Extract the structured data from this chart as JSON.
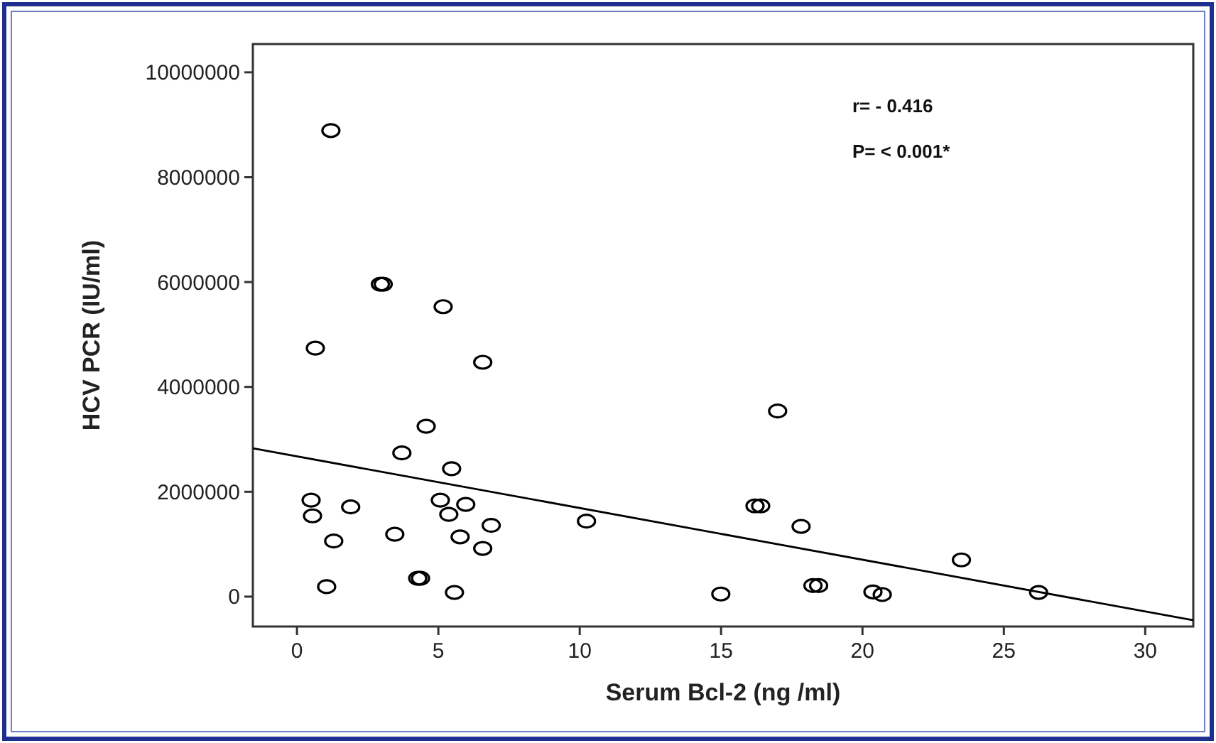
{
  "chart_data": {
    "type": "scatter",
    "xlabel": "Serum Bcl-2 (ng /ml)",
    "ylabel": "HCV PCR (IU/ml)",
    "xlim": [
      -1.56,
      31.7
    ],
    "ylim": [
      -570000,
      10540000
    ],
    "xticks": [
      0,
      5,
      10,
      15,
      20,
      25,
      30
    ],
    "yticks": [
      0,
      2000000,
      4000000,
      6000000,
      8000000,
      10000000
    ],
    "grid": false,
    "annotations": [
      "r= - 0.416",
      "P= < 0.001*"
    ],
    "series": [
      {
        "marker": "circle",
        "color": "#000000",
        "x": [
          1.2,
          2.95,
          3.05,
          5.17,
          0.65,
          6.57,
          4.57,
          3.71,
          5.47,
          0.5,
          0.55,
          1.9,
          5.07,
          5.37,
          5.97,
          6.87,
          1.3,
          3.46,
          5.77,
          6.57,
          1.05,
          4.27,
          4.37,
          5.57,
          10.24,
          17.0,
          16.2,
          16.4,
          17.83,
          14.99,
          18.25,
          18.45,
          20.37,
          20.7,
          23.5,
          26.23
        ],
        "values": [
          8890000,
          5960000,
          5960000,
          5530000,
          4740000,
          4470000,
          3250000,
          2740000,
          2440000,
          1840000,
          1540000,
          1710000,
          1840000,
          1570000,
          1760000,
          1360000,
          1060000,
          1190000,
          1140000,
          920000,
          190000,
          350000,
          350000,
          80000,
          1440000,
          3540000,
          1730000,
          1730000,
          1340000,
          50000,
          210000,
          210000,
          90000,
          40000,
          700000,
          80000
        ]
      },
      {
        "type": "line",
        "color": "#000000",
        "x": [
          -1.56,
          31.7
        ],
        "values": [
          2830000,
          -450000
        ]
      }
    ]
  }
}
